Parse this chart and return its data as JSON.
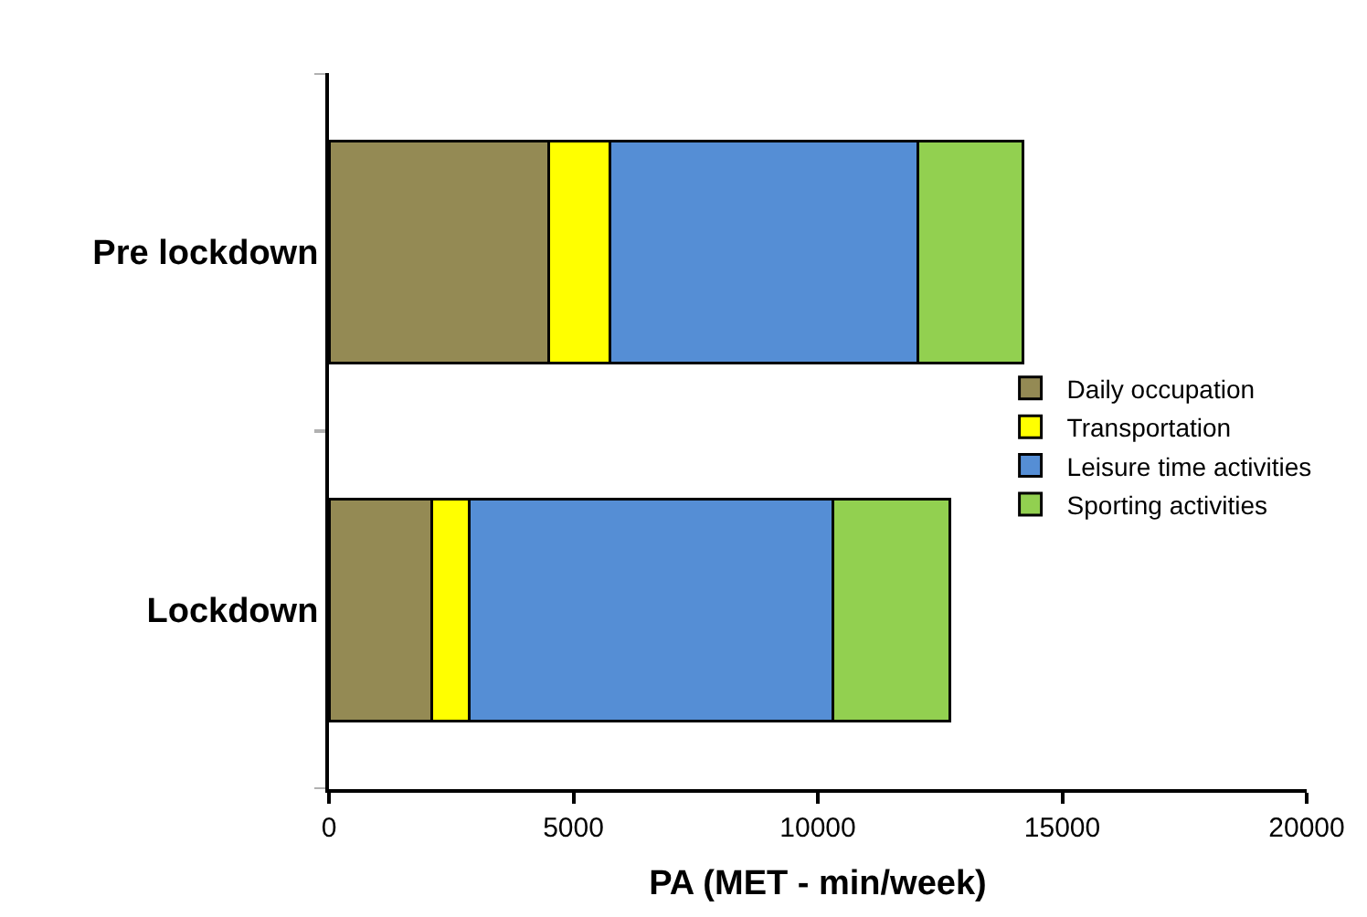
{
  "chart_data": {
    "type": "bar",
    "orientation": "horizontal",
    "stacked": true,
    "xlabel": "PA (MET - min/week)",
    "categories": [
      "Pre lockdown",
      "Lockdown"
    ],
    "series": [
      {
        "name": "Daily occupation",
        "color": "#948a54",
        "values": [
          4500,
          2100
        ]
      },
      {
        "name": "Transportation",
        "color": "#ffff00",
        "values": [
          1250,
          770
        ]
      },
      {
        "name": "Leisure time activities",
        "color": "#558ed5",
        "values": [
          6300,
          7440
        ]
      },
      {
        "name": "Sporting activities",
        "color": "#92d050",
        "values": [
          2150,
          2390
        ]
      }
    ],
    "xlim": [
      0,
      20000
    ],
    "xticks": [
      0,
      5000,
      10000,
      15000,
      20000
    ],
    "grid": false,
    "legend": "right"
  }
}
